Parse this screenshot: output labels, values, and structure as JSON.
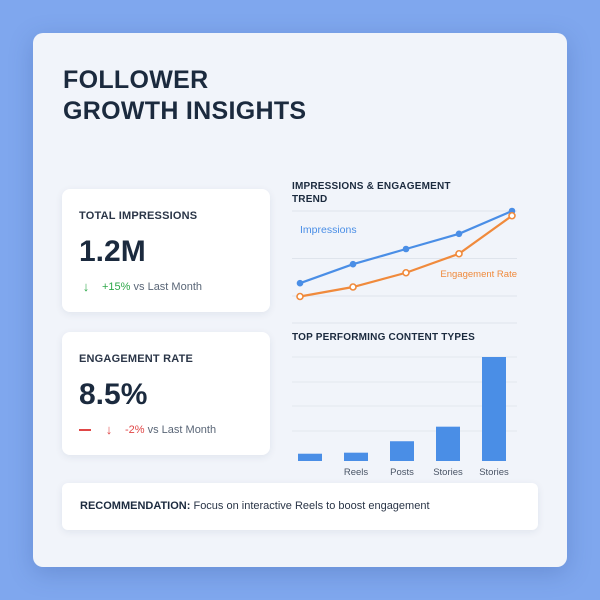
{
  "title": {
    "line1": "FOLLOWER",
    "line2": "GROWTH INSIGHTS"
  },
  "cards": {
    "impressions": {
      "label": "TOTAL IMPRESSIONS",
      "value": "1.2M",
      "change": "+15%",
      "suffix": "vs Last Month"
    },
    "engagement": {
      "label": "ENGAGEMENT RATE",
      "value": "8.5%",
      "change": "-2%",
      "suffix": "vs Last Month"
    }
  },
  "colors": {
    "impressions": "#4a8ee6",
    "engagement": "#f08a3c",
    "bar": "#4a8ee6",
    "up": "#2ea84a",
    "down": "#e04646"
  },
  "chart_data": [
    {
      "type": "line",
      "title": "IMPRESSIONS & ENGAGEMENT TREND",
      "x": [
        1,
        2,
        3,
        4,
        5
      ],
      "ylim": [
        0,
        100
      ],
      "series": [
        {
          "name": "Impressions",
          "values": [
            24,
            44,
            60,
            76,
            100
          ]
        },
        {
          "name": "Engagement Rate",
          "values": [
            10,
            20,
            35,
            55,
            95
          ]
        }
      ]
    },
    {
      "type": "bar",
      "title": "TOP PERFORMING CONTENT TYPES",
      "categories": [
        "",
        "Reels",
        "Posts",
        "Stories",
        "Stories"
      ],
      "values": [
        7,
        8,
        19,
        33,
        100
      ],
      "ylim": [
        0,
        100
      ]
    }
  ],
  "recommendation": {
    "label": "RECOMMENDATION:",
    "text": "Focus on interactive Reels to boost engagement"
  }
}
